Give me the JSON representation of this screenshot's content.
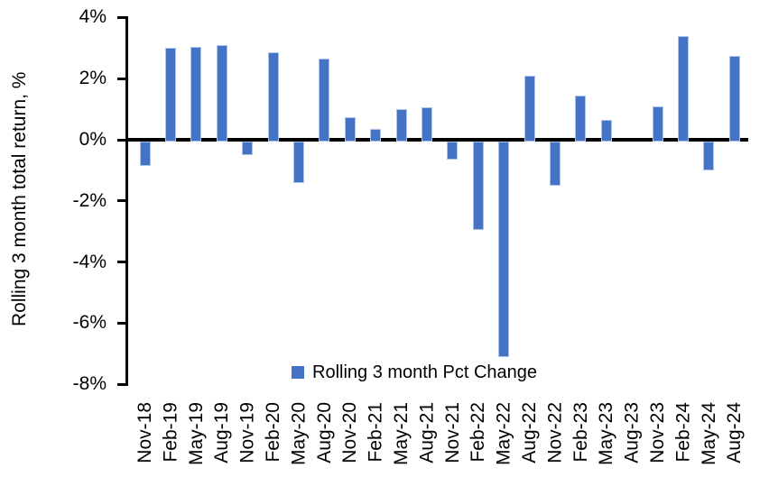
{
  "chart_data": {
    "type": "bar",
    "title": "",
    "xlabel": "",
    "ylabel": "Rolling 3 month total return, %",
    "legend_label": "Rolling 3 month Pct Change",
    "legend_position": "bottom-center",
    "grid": false,
    "ylim": [
      -8,
      4
    ],
    "y_tick_values": [
      4,
      2,
      0,
      -2,
      -4,
      -6,
      -8
    ],
    "y_tick_labels": [
      "4%",
      "2%",
      "0%",
      "-2%",
      "-4%",
      "-6%",
      "-8%"
    ],
    "categories": [
      "Nov-18",
      "Feb-19",
      "May-19",
      "Aug-19",
      "Nov-19",
      "Feb-20",
      "May-20",
      "Aug-20",
      "Nov-20",
      "Feb-21",
      "May-21",
      "Aug-21",
      "Nov-21",
      "Feb-22",
      "May-22",
      "Aug-22",
      "Nov-22",
      "Feb-23",
      "May-23",
      "Aug-23",
      "Nov-23",
      "Feb-24",
      "May-24",
      "Aug-24"
    ],
    "series": [
      {
        "name": "Rolling 3 month Pct Change",
        "values": [
          -0.75,
          3.0,
          3.05,
          3.1,
          -0.4,
          2.85,
          -1.3,
          2.65,
          0.75,
          0.35,
          1.0,
          1.05,
          -0.55,
          -2.85,
          -7.0,
          2.1,
          -1.4,
          1.45,
          0.65,
          0.0,
          1.1,
          3.4,
          -0.9,
          2.75
        ]
      }
    ],
    "colors": {
      "bar_fill": "#4472C4",
      "bar_edge": "#aac3e9",
      "axis": "#000000",
      "text": "#000000",
      "background": "#ffffff"
    }
  }
}
